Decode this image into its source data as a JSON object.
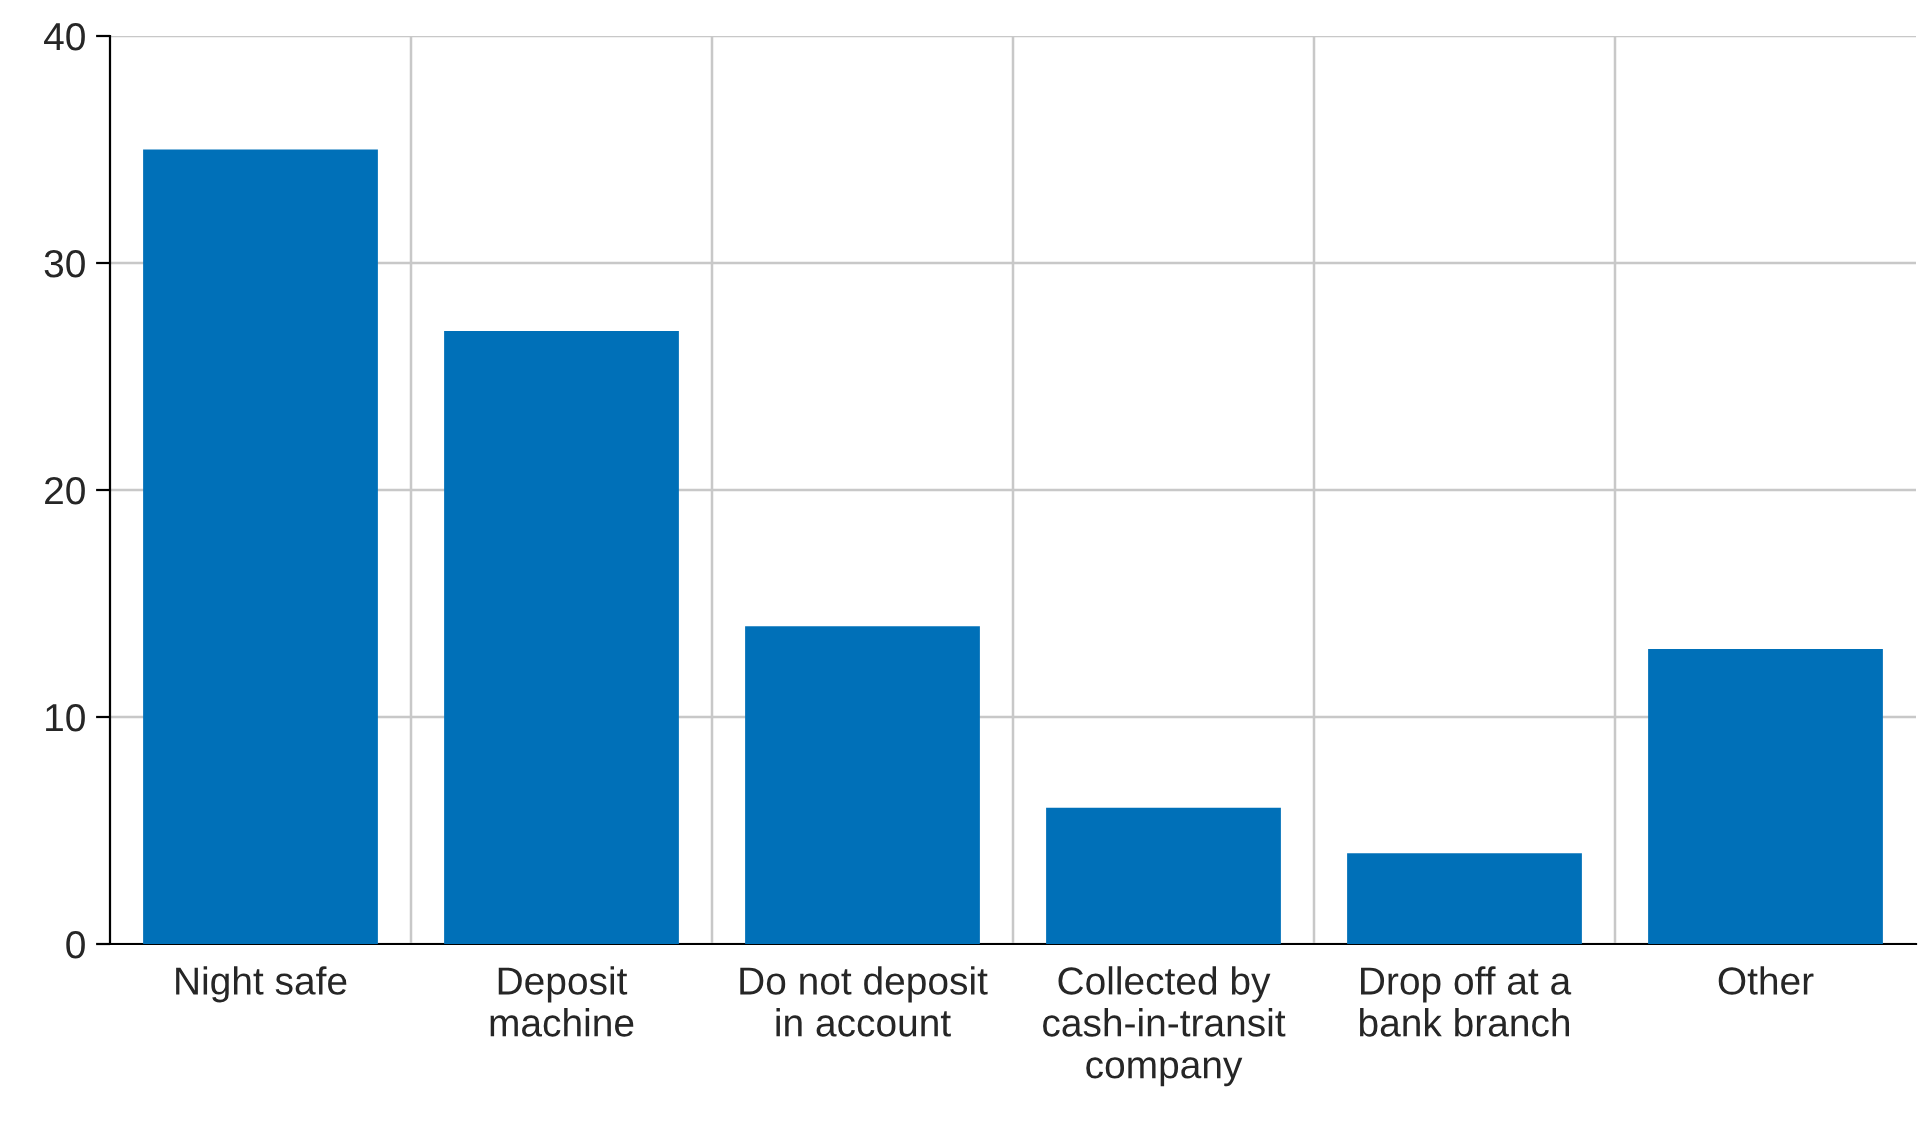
{
  "chart_data": {
    "type": "bar",
    "categories": [
      "Night safe",
      "Deposit\nmachine",
      "Do not deposit\nin account",
      "Collected by\ncash-in-transit\ncompany",
      "Drop off at a\nbank branch",
      "Other"
    ],
    "values": [
      35,
      27,
      14,
      6,
      4,
      13
    ],
    "color": "#0070b8",
    "ylim": [
      0,
      40
    ],
    "yticks": [
      0,
      10,
      20,
      30,
      40
    ],
    "grid": true
  }
}
